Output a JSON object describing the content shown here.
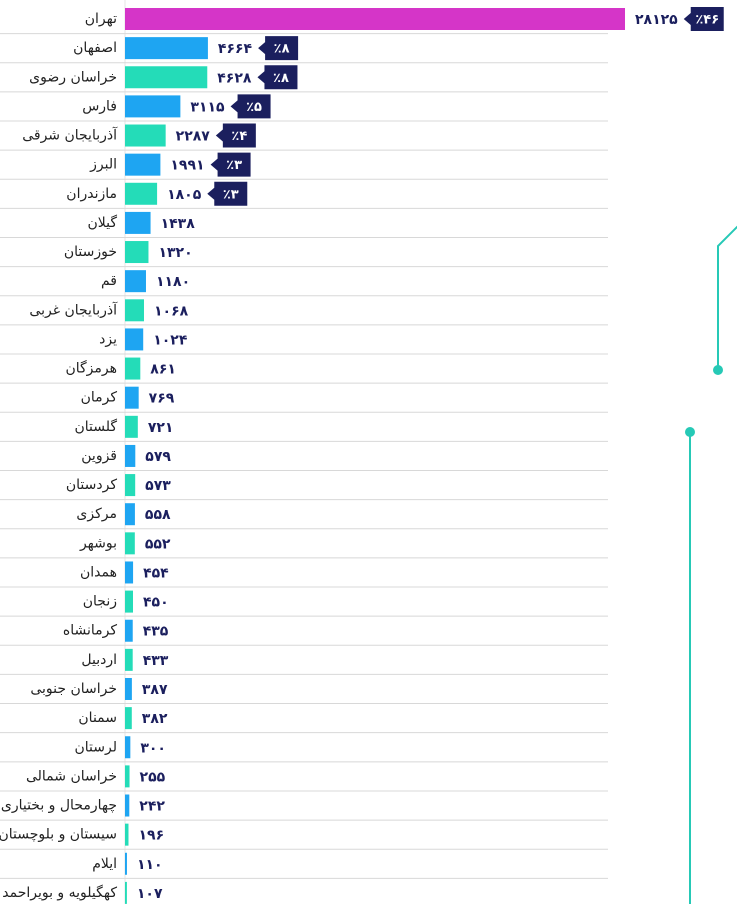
{
  "chart_data": {
    "type": "bar",
    "orientation": "horizontal",
    "categories": [
      "تهران",
      "اصفهان",
      "خراسان رضوی",
      "فارس",
      "آذربایجان شرقی",
      "البرز",
      "مازندران",
      "گیلان",
      "خوزستان",
      "قم",
      "آذربایجان غربی",
      "یزد",
      "هرمزگان",
      "کرمان",
      "گلستان",
      "قزوین",
      "کردستان",
      "مرکزی",
      "بوشهر",
      "همدان",
      "زنجان",
      "کرمانشاه",
      "اردبیل",
      "خراسان جنوبی",
      "سمنان",
      "لرستان",
      "خراسان شمالی",
      "چهارمحال و بختیاری",
      "سیستان و بلوچستان",
      "ایلام",
      "کهگیلویه و بویراحمد"
    ],
    "values": [
      28125,
      4664,
      4628,
      3115,
      2287,
      1991,
      1805,
      1438,
      1320,
      1180,
      1068,
      1024,
      861,
      769,
      721,
      579,
      573,
      558,
      552,
      454,
      450,
      435,
      433,
      387,
      382,
      300,
      255,
      242,
      196,
      110,
      107
    ],
    "value_labels": [
      "۲۸۱۲۵",
      "۴۶۶۴",
      "۴۶۲۸",
      "۳۱۱۵",
      "۲۲۸۷",
      "۱۹۹۱",
      "۱۸۰۵",
      "۱۴۳۸",
      "۱۳۲۰",
      "۱۱۸۰",
      "۱۰۶۸",
      "۱۰۲۴",
      "۸۶۱",
      "۷۶۹",
      "۷۲۱",
      "۵۷۹",
      "۵۷۳",
      "۵۵۸",
      "۵۵۲",
      "۴۵۴",
      "۴۵۰",
      "۴۳۵",
      "۴۳۳",
      "۳۸۷",
      "۳۸۲",
      "۳۰۰",
      "۲۵۵",
      "۲۴۲",
      "۱۹۶",
      "۱۱۰",
      "۱۰۷"
    ],
    "colors": [
      "#d535c8",
      "#1ea5f2",
      "#24dcb8",
      "#1ea5f2",
      "#24dcb8",
      "#1ea5f2",
      "#24dcb8",
      "#1ea5f2",
      "#24dcb8",
      "#1ea5f2",
      "#24dcb8",
      "#1ea5f2",
      "#24dcb8",
      "#1ea5f2",
      "#24dcb8",
      "#1ea5f2",
      "#24dcb8",
      "#1ea5f2",
      "#24dcb8",
      "#1ea5f2",
      "#24dcb8",
      "#1ea5f2",
      "#24dcb8",
      "#1ea5f2",
      "#24dcb8",
      "#1ea5f2",
      "#24dcb8",
      "#1ea5f2",
      "#24dcb8",
      "#1ea5f2",
      "#24dcb8"
    ],
    "shares": {
      "values": [
        46,
        8,
        8,
        5,
        4,
        3,
        3
      ],
      "labels": [
        "٪۴۶",
        "٪۸",
        "٪۸",
        "٪۵",
        "٪۴",
        "٪۳",
        "٪۳"
      ],
      "color": "#1b1f5e"
    }
  }
}
